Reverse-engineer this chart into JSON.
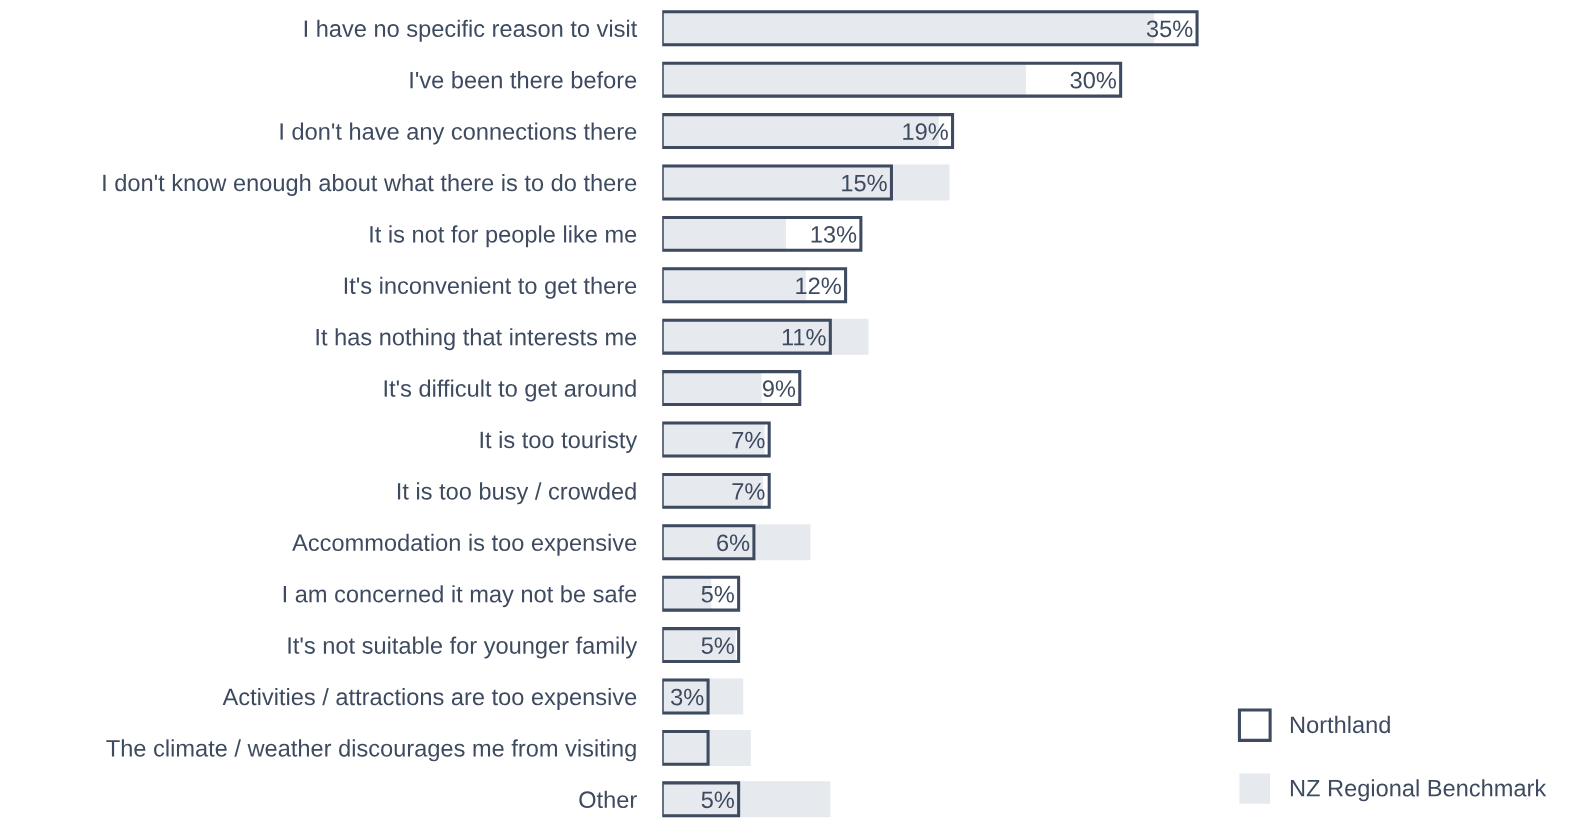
{
  "chart_data": {
    "type": "bar",
    "orientation": "horizontal",
    "categories": [
      "I have no specific reason to visit",
      "I've been there before",
      "I don't have any connections there",
      "I don't know enough about what there is to do there",
      "It is not for people like me",
      "It's inconvenient to get there",
      "It has nothing that interests me",
      "It's difficult to get around",
      "It is too touristy",
      "It is too busy / crowded",
      "Accommodation is too expensive",
      "I am concerned it may not be safe",
      "It's not suitable for younger family",
      "Activities / attractions are too expensive",
      "The climate / weather discourages me from visiting",
      "Other"
    ],
    "series": [
      {
        "name": "NZ Regional Benchmark",
        "color": "#e6e9ee",
        "values": [
          32.2,
          23.8,
          18.1,
          18.8,
          8.1,
          9.4,
          13.5,
          6.5,
          6.7,
          6.6,
          9.7,
          3.2,
          4.8,
          5.3,
          5.8,
          11.0
        ]
      },
      {
        "name": "Northland",
        "color": "#3d4a5f",
        "values": [
          35,
          30,
          19,
          15,
          13,
          12,
          11,
          9,
          7,
          7,
          6,
          5,
          5,
          3,
          3,
          5
        ],
        "value_labels": [
          "35%",
          "30%",
          "19%",
          "15%",
          "13%",
          "12%",
          "11%",
          "9%",
          "7%",
          "7%",
          "6%",
          "5%",
          "5%",
          "3%",
          null,
          "5%"
        ]
      }
    ],
    "legend": "bottom right",
    "grid": false,
    "tick_labels": "y"
  }
}
